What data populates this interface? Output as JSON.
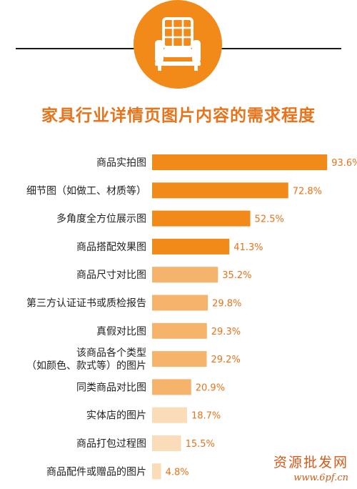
{
  "colors": {
    "accent": "#f28a1a",
    "bar_strong": "#f28a1a",
    "bar_mid": "#f6b36b",
    "bar_light": "#fadcb8",
    "value_text": "#e8731a"
  },
  "header_icon": "armchair-icon",
  "watermark": {
    "cn": "资源批发网",
    "url": "www.6pf.cn"
  },
  "chart_data": {
    "type": "bar",
    "orientation": "horizontal",
    "title": "家具行业详情页图片内容的需求程度",
    "unit": "%",
    "xlim": [
      0,
      100
    ],
    "categories": [
      "商品实拍图",
      "细节图（如做工、材质等）",
      "多角度全方位展示图",
      "商品搭配效果图",
      "商品尺寸对比图",
      "第三方认证证书或质检报告",
      "真假对比图",
      "该商品各个类型|（如颜色、款式等）的图片",
      "同类商品对比图",
      "实体店的图片",
      "商品打包过程图",
      "商品配件或赠品的图片"
    ],
    "values": [
      93.6,
      72.8,
      52.5,
      41.3,
      35.2,
      29.8,
      29.3,
      29.2,
      20.9,
      18.7,
      15.5,
      4.8
    ],
    "value_labels": [
      "93.6%",
      "72.8%",
      "52.5%",
      "41.3%",
      "35.2%",
      "29.8%",
      "29.3%",
      "29.2%",
      "20.9%",
      "18.7%",
      "15.5%",
      "4.8%"
    ],
    "bar_tone": [
      "strong",
      "strong",
      "strong",
      "strong",
      "mid",
      "mid",
      "mid",
      "mid",
      "mid",
      "light",
      "light",
      "light"
    ],
    "grid": false,
    "legend": "none"
  }
}
